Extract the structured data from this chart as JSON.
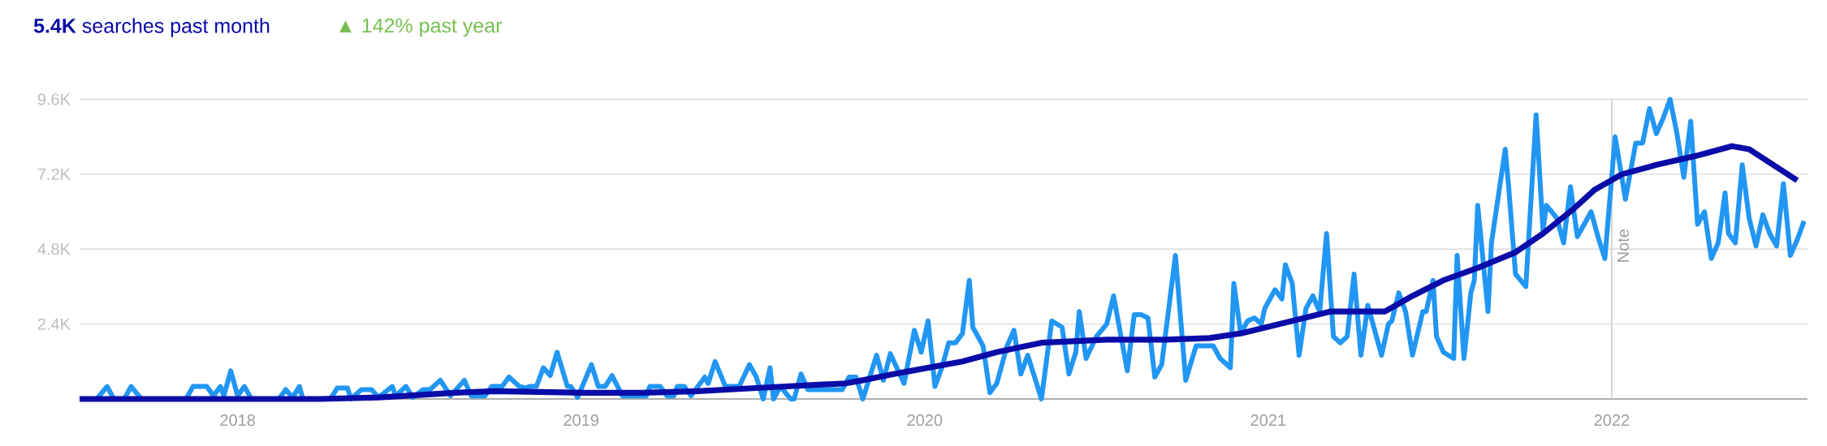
{
  "chart_data": {
    "type": "line",
    "title": "**5.4K** searches past month",
    "subtitle": "▲ 142% past year",
    "xlim": [
      2017.54,
      2022.57
    ],
    "xticks": [
      2018,
      2019,
      2020,
      2021,
      2022
    ],
    "ylim": [
      0,
      9600
    ],
    "yticks": [
      {
        "value": 0,
        "label": null
      },
      {
        "value": 2400,
        "label": "2.4K"
      },
      {
        "value": 4800,
        "label": "4.8K"
      },
      {
        "value": 7200,
        "label": "7.2K"
      },
      {
        "value": 9600,
        "label": "9.6K"
      }
    ],
    "grid": "y",
    "marker": "none",
    "line_style": "solid",
    "ref_lines": [
      {
        "axis": "x",
        "value": 2022,
        "label": "Note",
        "color": "#cccccc"
      }
    ],
    "series": [
      {
        "color": "#2196f3",
        "x": [
          2017.54,
          2017.59,
          2017.62,
          2017.64,
          2017.67,
          2017.69,
          2017.72,
          2017.85,
          2017.87,
          2017.91,
          2017.93,
          2017.95,
          2017.96,
          2017.98,
          2018.0,
          2018.02,
          2018.04,
          2018.12,
          2018.14,
          2018.16,
          2018.18,
          2018.19,
          2018.27,
          2018.29,
          2018.32,
          2018.33,
          2018.36,
          2018.39,
          2018.41,
          2018.45,
          2018.46,
          2018.49,
          2018.51,
          2018.54,
          2018.56,
          2018.59,
          2018.62,
          2018.66,
          2018.68,
          2018.72,
          2018.74,
          2018.77,
          2018.79,
          2018.82,
          2018.84,
          2018.85,
          2018.87,
          2018.89,
          2018.91,
          2018.93,
          2018.96,
          2018.97,
          2018.99,
          2019.03,
          2019.05,
          2019.07,
          2019.09,
          2019.12,
          2019.19,
          2019.2,
          2019.23,
          2019.25,
          2019.27,
          2019.28,
          2019.3,
          2019.32,
          2019.34,
          2019.36,
          2019.37,
          2019.39,
          2019.42,
          2019.46,
          2019.49,
          2019.51,
          2019.53,
          2019.55,
          2019.56,
          2019.58,
          2019.61,
          2019.62,
          2019.64,
          2019.66,
          2019.76,
          2019.78,
          2019.8,
          2019.82,
          2019.86,
          2019.88,
          2019.9,
          2019.94,
          2019.97,
          2019.99,
          2020.01,
          2020.03,
          2020.05,
          2020.07,
          2020.09,
          2020.11,
          2020.13,
          2020.14,
          2020.17,
          2020.19,
          2020.21,
          2020.24,
          2020.26,
          2020.28,
          2020.3,
          2020.34,
          2020.37,
          2020.4,
          2020.42,
          2020.44,
          2020.45,
          2020.47,
          2020.5,
          2020.53,
          2020.55,
          2020.59,
          2020.61,
          2020.63,
          2020.65,
          2020.67,
          2020.69,
          2020.73,
          2020.76,
          2020.79,
          2020.84,
          2020.86,
          2020.89,
          2020.9,
          2020.92,
          2020.94,
          2020.96,
          2020.98,
          2020.99,
          2021.02,
          2021.04,
          2021.05,
          2021.07,
          2021.09,
          2021.11,
          2021.13,
          2021.15,
          2021.17,
          2021.19,
          2021.21,
          2021.23,
          2021.25,
          2021.27,
          2021.29,
          2021.3,
          2021.33,
          2021.35,
          2021.36,
          2021.38,
          2021.4,
          2021.42,
          2021.45,
          2021.46,
          2021.48,
          2021.49,
          2021.51,
          2021.54,
          2021.55,
          2021.57,
          2021.59,
          2021.6,
          2021.61,
          2021.64,
          2021.65,
          2021.69,
          2021.7,
          2021.72,
          2021.75,
          2021.78,
          2021.8,
          2021.81,
          2021.84,
          2021.86,
          2021.88,
          2021.9,
          2021.92,
          2021.94,
          2021.96,
          2021.98,
          2022.01,
          2022.04,
          2022.06,
          2022.07,
          2022.09,
          2022.11,
          2022.13,
          2022.15,
          2022.17,
          2022.19,
          2022.21,
          2022.23,
          2022.25,
          2022.27,
          2022.29,
          2022.31,
          2022.33,
          2022.34,
          2022.36,
          2022.38,
          2022.4,
          2022.42,
          2022.44,
          2022.46,
          2022.48,
          2022.5,
          2022.52,
          2022.54,
          2022.56
        ],
        "values": [
          0,
          0,
          400,
          0,
          0,
          400,
          0,
          0,
          400,
          400,
          100,
          400,
          100,
          900,
          100,
          400,
          0,
          0,
          300,
          50,
          400,
          0,
          0,
          350,
          350,
          0,
          300,
          300,
          50,
          400,
          100,
          400,
          50,
          300,
          300,
          600,
          100,
          600,
          100,
          100,
          400,
          400,
          700,
          400,
          350,
          400,
          400,
          1000,
          750,
          1500,
          400,
          400,
          50,
          1100,
          400,
          400,
          750,
          100,
          100,
          400,
          400,
          100,
          100,
          400,
          400,
          100,
          400,
          700,
          500,
          1200,
          400,
          400,
          1100,
          700,
          0,
          1000,
          0,
          400,
          0,
          0,
          800,
          300,
          300,
          700,
          700,
          0,
          1400,
          600,
          1450,
          500,
          2200,
          1500,
          2500,
          400,
          1000,
          1800,
          1800,
          2100,
          3800,
          2300,
          1700,
          200,
          500,
          1700,
          2200,
          800,
          1400,
          0,
          2500,
          2300,
          800,
          1500,
          2800,
          1300,
          2000,
          2400,
          3300,
          900,
          2700,
          2700,
          2600,
          700,
          1100,
          4600,
          600,
          1700,
          1700,
          1300,
          1000,
          3700,
          2100,
          2500,
          2600,
          2400,
          2900,
          3500,
          3200,
          4300,
          3700,
          1400,
          2900,
          3300,
          2800,
          5300,
          2000,
          1800,
          2000,
          4000,
          1400,
          3000,
          2600,
          1400,
          2400,
          2500,
          3400,
          2800,
          1400,
          2800,
          2800,
          3800,
          2000,
          1500,
          1300,
          4600,
          1300,
          3400,
          3800,
          6200,
          2800,
          5000,
          8000,
          6800,
          4000,
          3600,
          9100,
          5400,
          6200,
          5800,
          5000,
          6800,
          5200,
          5600,
          6000,
          5200,
          4500,
          8400,
          6400,
          7600,
          8200,
          8200,
          9300,
          8500,
          9000,
          9600,
          8500,
          7100,
          8900,
          5600,
          6000,
          4500,
          5000,
          6600,
          5300,
          5000,
          7500,
          5800,
          4900,
          5900,
          5300,
          4900,
          6900,
          4600,
          5100,
          5700
        ]
      },
      {
        "color": "#0a0ca8",
        "x": [
          2017.54,
          2018.24,
          2018.41,
          2018.49,
          2018.63,
          2018.75,
          2019.01,
          2019.18,
          2019.34,
          2019.51,
          2019.77,
          2019.82,
          2019.91,
          2019.96,
          2020.11,
          2020.21,
          2020.34,
          2020.53,
          2020.7,
          2020.83,
          2020.92,
          2021.07,
          2021.18,
          2021.23,
          2021.34,
          2021.42,
          2021.51,
          2021.61,
          2021.72,
          2021.8,
          2021.89,
          2021.95,
          2022.03,
          2022.13,
          2022.25,
          2022.35,
          2022.4,
          2022.47,
          2022.54
        ],
        "values": [
          0,
          0,
          50,
          100,
          200,
          250,
          200,
          200,
          250,
          350,
          500,
          600,
          800,
          900,
          1200,
          1500,
          1800,
          1900,
          1900,
          1950,
          2100,
          2500,
          2800,
          2800,
          2800,
          3300,
          3800,
          4200,
          4700,
          5300,
          6100,
          6700,
          7200,
          7500,
          7800,
          8100,
          8000,
          7500,
          7000
        ]
      }
    ]
  }
}
